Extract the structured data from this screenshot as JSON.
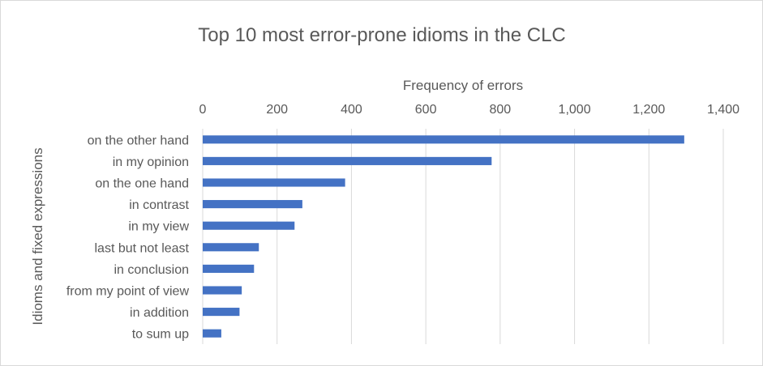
{
  "chart_data": {
    "type": "bar",
    "orientation": "horizontal",
    "title": "Top 10 most error-prone idioms in the CLC",
    "xlabel": "Frequency of errors",
    "ylabel": "Idioms and fixed expressions",
    "x_axis_position": "top",
    "xlim": [
      0,
      1400
    ],
    "xticks": [
      0,
      200,
      400,
      600,
      800,
      1000,
      1200,
      1400
    ],
    "xtick_labels": [
      "0",
      "200",
      "400",
      "600",
      "800",
      "1,000",
      "1,200",
      "1,400"
    ],
    "grid": true,
    "legend": "none",
    "bar_color": "#4472C4",
    "categories": [
      "on the other hand",
      "in my opinion",
      "on the one hand",
      "in contrast",
      "in my view",
      "last but not least",
      "in conclusion",
      "from my point of view",
      "in addition",
      "to sum up"
    ],
    "values": [
      1295,
      777,
      383,
      268,
      247,
      151,
      138,
      105,
      99,
      50
    ]
  }
}
